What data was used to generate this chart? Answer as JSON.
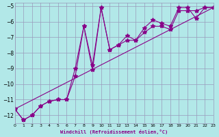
{
  "xlabel": "Windchill (Refroidissement éolien,°C)",
  "ylabel": "",
  "bg_color": "#b2e8e8",
  "grid_color": "#9999bb",
  "line_color": "#880088",
  "xlim": [
    0,
    23
  ],
  "ylim": [
    -12.5,
    -4.8
  ],
  "yticks": [
    -12,
    -11,
    -10,
    -9,
    -8,
    -7,
    -6,
    -5
  ],
  "xticks": [
    0,
    1,
    2,
    3,
    4,
    5,
    6,
    7,
    8,
    9,
    10,
    11,
    12,
    13,
    14,
    15,
    16,
    17,
    18,
    19,
    20,
    21,
    22,
    23
  ],
  "line1_x": [
    0,
    1,
    2,
    3,
    4,
    5,
    6,
    7,
    8,
    9,
    10,
    11,
    12,
    13,
    14,
    15,
    16,
    17,
    18,
    19,
    20,
    21,
    22,
    23
  ],
  "line1_y": [
    -11.6,
    -12.3,
    -12.0,
    -11.4,
    -11.1,
    -11.0,
    -11.0,
    -9.0,
    -6.3,
    -9.1,
    -5.1,
    -7.8,
    -7.5,
    -6.9,
    -7.2,
    -6.4,
    -5.9,
    -6.1,
    -6.3,
    -5.1,
    -5.1,
    -5.8,
    -5.1,
    -5.1
  ],
  "line2_x": [
    0,
    1,
    2,
    3,
    4,
    5,
    6,
    7,
    8,
    9,
    10,
    11,
    12,
    13,
    14,
    15,
    16,
    17,
    18,
    19,
    20,
    21,
    22,
    23
  ],
  "line2_y": [
    -11.6,
    -12.3,
    -12.0,
    -11.4,
    -11.1,
    -11.0,
    -11.0,
    -9.5,
    -6.3,
    -8.8,
    -5.1,
    -7.8,
    -7.5,
    -7.2,
    -7.2,
    -6.7,
    -6.3,
    -6.3,
    -6.5,
    -5.3,
    -5.3,
    -5.3,
    -5.1,
    -5.1
  ],
  "line3_x": [
    0,
    23
  ],
  "line3_y": [
    -11.6,
    -5.1
  ]
}
